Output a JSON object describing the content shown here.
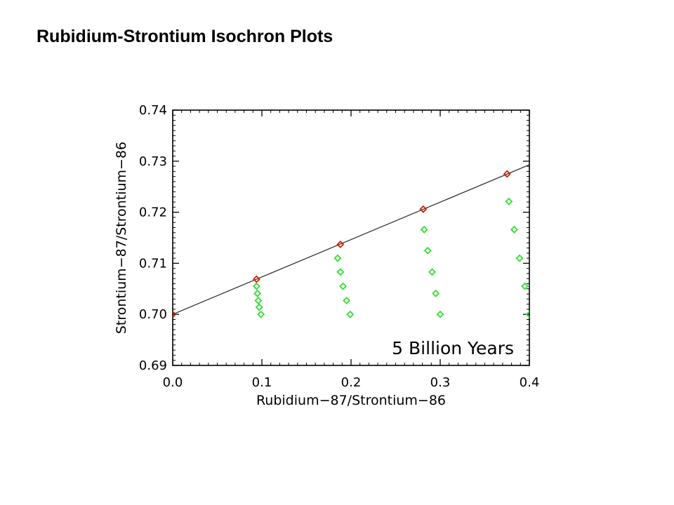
{
  "slide": {
    "title": "Rubidium-Strontium Isochron Plots"
  },
  "chart_data": {
    "type": "scatter",
    "title": "",
    "xlabel": "Rubidium−87/Strontium−86",
    "ylabel": "Strontium−87/Strontium−86",
    "xlim": [
      0.0,
      0.4
    ],
    "ylim": [
      0.69,
      0.74
    ],
    "xticks": [
      "0.0",
      "0.1",
      "0.2",
      "0.3",
      "0.4"
    ],
    "yticks": [
      "0.69",
      "0.70",
      "0.71",
      "0.72",
      "0.73",
      "0.74"
    ],
    "grid": false,
    "annotation": "5 Billion Years",
    "colors": {
      "isochron_points": "#cc2200",
      "decay_points": "#33dd33",
      "line": "#333333"
    },
    "isochron_line": {
      "x": [
        0.0,
        0.4
      ],
      "y": [
        0.7,
        0.7293
      ]
    },
    "series": [
      {
        "x": [
          0.0,
          0.094,
          0.188,
          0.281,
          0.375
        ],
        "y": [
          0.7,
          0.7069,
          0.7137,
          0.7206,
          0.7275
        ]
      },
      {
        "x": [
          0.094,
          0.095,
          0.096,
          0.097,
          0.099,
          0.185,
          0.188,
          0.191,
          0.195,
          0.199,
          0.282,
          0.286,
          0.291,
          0.295,
          0.3,
          0.377,
          0.383,
          0.389,
          0.395,
          0.4
        ],
        "y": [
          0.7055,
          0.7041,
          0.7027,
          0.7014,
          0.7,
          0.711,
          0.7083,
          0.7055,
          0.7027,
          0.7,
          0.7166,
          0.7125,
          0.7083,
          0.7041,
          0.7,
          0.7221,
          0.7166,
          0.711,
          0.7055,
          0.7
        ]
      }
    ]
  }
}
